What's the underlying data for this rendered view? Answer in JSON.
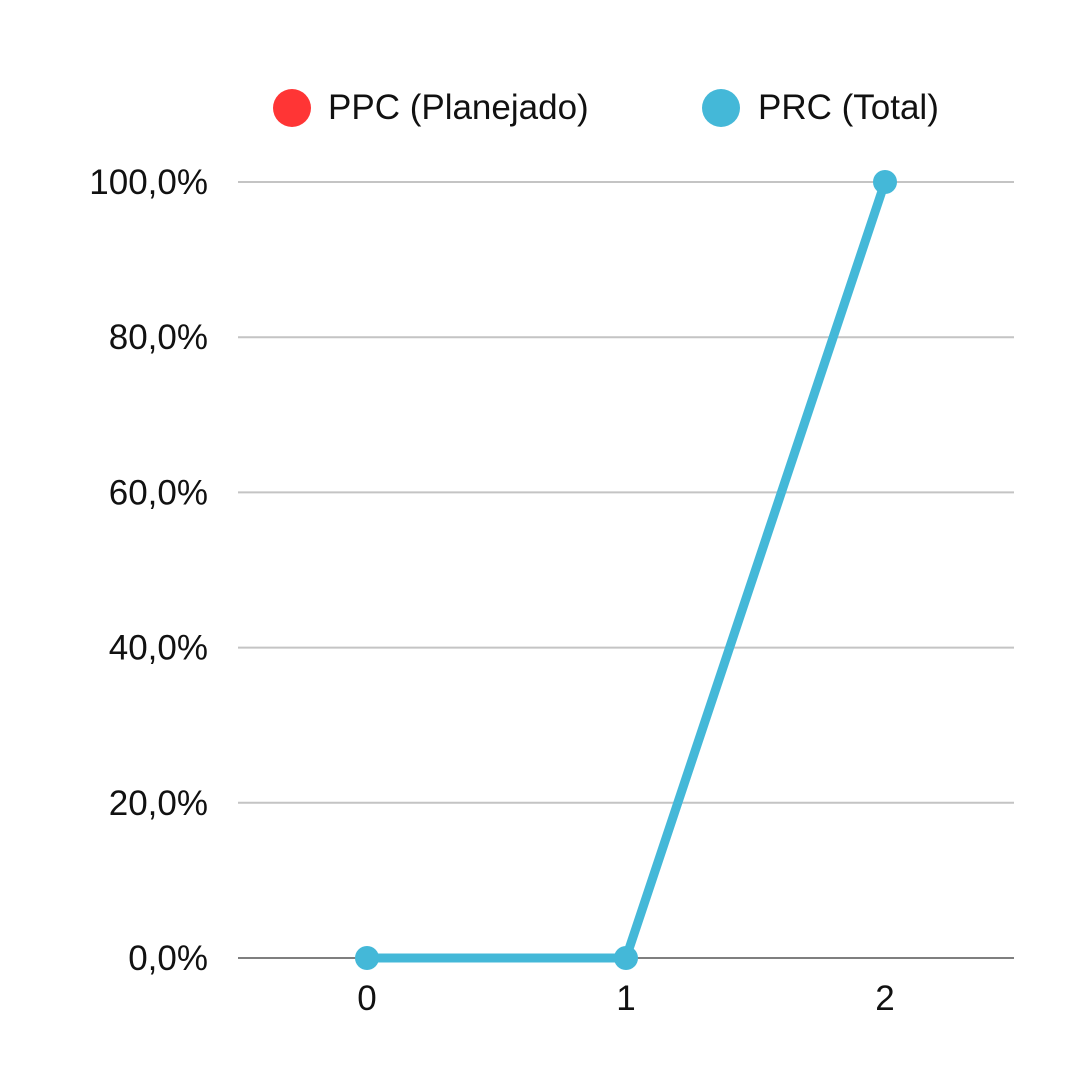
{
  "chart_data": {
    "type": "line",
    "title": "",
    "xlabel": "",
    "ylabel": "",
    "x": [
      0,
      1,
      2
    ],
    "x_tick_labels": [
      "0",
      "1",
      "2"
    ],
    "ylim": [
      0,
      100
    ],
    "y_ticks": [
      0,
      20,
      40,
      60,
      80,
      100
    ],
    "y_tick_labels": [
      "0,0%",
      "20,0%",
      "40,0%",
      "60,0%",
      "80,0%",
      "100,0%"
    ],
    "grid": true,
    "legend_position": "top",
    "series": [
      {
        "name": "PPC (Planejado)",
        "color": "#FF3535",
        "values": [
          null,
          null,
          null
        ]
      },
      {
        "name": "PRC (Total)",
        "color": "#44B8D8",
        "values": [
          0,
          0,
          100
        ]
      }
    ]
  }
}
